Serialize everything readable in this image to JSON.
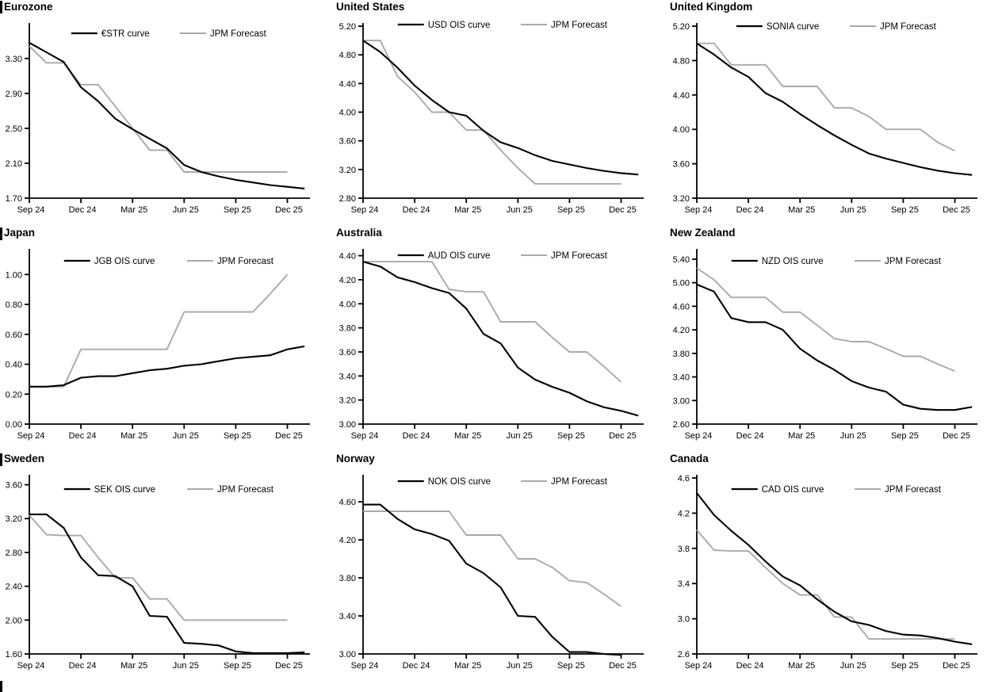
{
  "page": {
    "background_color": "#ffffff",
    "series_black_color": "#000000",
    "series_gray_color": "#a9a9a9"
  },
  "x_axis": {
    "tick_labels": [
      "Sep 24",
      "Dec 24",
      "Mar 25",
      "Jun 25",
      "Sep 25",
      "Dec 25"
    ],
    "tick_month_index": [
      0,
      3,
      6,
      9,
      12,
      15
    ]
  },
  "chart_data": [
    {
      "type": "line",
      "title": "Eurozone",
      "x_tick_labels": [
        "Sep 24",
        "Dec 24",
        "Mar 25",
        "Jun 25",
        "Sep 25",
        "Dec 25"
      ],
      "y_tick_labels": [
        "3.30",
        "2.90",
        "2.50",
        "2.10",
        "1.70"
      ],
      "ylim": [
        1.7,
        3.67
      ],
      "legend_position": "top-center",
      "grid": false,
      "series": [
        {
          "name": "€STR curve",
          "color_key": "black",
          "values": [
            3.48,
            3.37,
            3.26,
            2.97,
            2.81,
            2.61,
            2.49,
            2.38,
            2.27,
            2.08,
            2.0,
            1.95,
            1.91,
            1.88,
            1.85,
            1.83,
            1.81
          ]
        },
        {
          "name": "JPM Forecast",
          "color_key": "gray",
          "values": [
            3.44,
            3.25,
            3.25,
            3.0,
            3.0,
            2.75,
            2.5,
            2.25,
            2.25,
            2.0,
            2.0,
            2.0,
            2.0,
            2.0,
            2.0,
            2.0
          ]
        }
      ]
    },
    {
      "type": "line",
      "title": "United States",
      "x_tick_labels": [
        "Sep 24",
        "Dec 24",
        "Mar 25",
        "Jun 25",
        "Sep 25",
        "Dec 25"
      ],
      "y_tick_labels": [
        "5.20",
        "4.80",
        "4.40",
        "4.00",
        "3.60",
        "3.20",
        "2.80"
      ],
      "ylim": [
        2.8,
        5.2
      ],
      "legend_position": "top-center",
      "grid": false,
      "series": [
        {
          "name": "USD OIS curve",
          "color_key": "black",
          "values": [
            5.0,
            4.84,
            4.62,
            4.37,
            4.17,
            4.0,
            3.95,
            3.74,
            3.58,
            3.5,
            3.4,
            3.32,
            3.27,
            3.22,
            3.18,
            3.15,
            3.13
          ]
        },
        {
          "name": "JPM Forecast",
          "color_key": "gray",
          "values": [
            5.0,
            5.0,
            4.5,
            4.28,
            4.0,
            4.0,
            3.75,
            3.75,
            3.47,
            3.22,
            3.0,
            3.0,
            3.0,
            3.0,
            3.0,
            3.0
          ]
        }
      ]
    },
    {
      "type": "line",
      "title": "United Kingdom",
      "x_tick_labels": [
        "Sep 24",
        "Dec 24",
        "Mar 25",
        "Jun 25",
        "Sep 25",
        "Dec 25"
      ],
      "y_tick_labels": [
        "5.20",
        "4.80",
        "4.40",
        "4.00",
        "3.60",
        "3.20"
      ],
      "ylim": [
        3.2,
        5.2
      ],
      "legend_position": "top-center",
      "grid": false,
      "series": [
        {
          "name": "SONIA curve",
          "color_key": "black",
          "values": [
            5.0,
            4.87,
            4.72,
            4.61,
            4.42,
            4.32,
            4.18,
            4.05,
            3.93,
            3.82,
            3.72,
            3.66,
            3.61,
            3.56,
            3.52,
            3.49,
            3.47
          ]
        },
        {
          "name": "JPM Forecast",
          "color_key": "gray",
          "values": [
            5.0,
            5.0,
            4.75,
            4.75,
            4.75,
            4.5,
            4.5,
            4.5,
            4.25,
            4.25,
            4.15,
            4.0,
            4.0,
            4.0,
            3.85,
            3.75
          ]
        }
      ]
    },
    {
      "type": "line",
      "title": "Japan",
      "x_tick_labels": [
        "Sep 24",
        "Dec 24",
        "Mar 25",
        "Jun 25",
        "Sep 25",
        "Dec 25"
      ],
      "y_tick_labels": [
        "1.00",
        "0.80",
        "0.60",
        "0.40",
        "0.20",
        "0.00"
      ],
      "ylim": [
        0.0,
        1.15
      ],
      "legend_position": "top-center",
      "grid": false,
      "series": [
        {
          "name": "JGB OIS curve",
          "color_key": "black",
          "values": [
            0.25,
            0.25,
            0.26,
            0.31,
            0.32,
            0.32,
            0.34,
            0.36,
            0.37,
            0.39,
            0.4,
            0.42,
            0.44,
            0.45,
            0.46,
            0.5,
            0.52
          ]
        },
        {
          "name": "JPM Forecast",
          "color_key": "gray",
          "values": [
            0.25,
            0.25,
            0.25,
            0.5,
            0.5,
            0.5,
            0.5,
            0.5,
            0.5,
            0.75,
            0.75,
            0.75,
            0.75,
            0.75,
            0.87,
            1.0
          ]
        }
      ]
    },
    {
      "type": "line",
      "title": "Australia",
      "x_tick_labels": [
        "Sep 24",
        "Dec 24",
        "Mar 25",
        "Jun 25",
        "Sep 25",
        "Dec 25"
      ],
      "y_tick_labels": [
        "4.40",
        "4.20",
        "4.00",
        "3.80",
        "3.60",
        "3.40",
        "3.20",
        "3.00"
      ],
      "ylim": [
        3.0,
        4.43
      ],
      "legend_position": "top-center",
      "grid": false,
      "series": [
        {
          "name": "AUD OIS curve",
          "color_key": "black",
          "values": [
            4.35,
            4.31,
            4.22,
            4.18,
            4.13,
            4.09,
            3.96,
            3.75,
            3.67,
            3.47,
            3.37,
            3.31,
            3.26,
            3.19,
            3.14,
            3.11,
            3.07
          ]
        },
        {
          "name": "JPM Forecast",
          "color_key": "gray",
          "values": [
            4.35,
            4.35,
            4.35,
            4.35,
            4.35,
            4.12,
            4.1,
            4.1,
            3.85,
            3.85,
            3.85,
            3.72,
            3.6,
            3.6,
            3.48,
            3.35
          ]
        }
      ]
    },
    {
      "type": "line",
      "title": "New Zealand",
      "x_tick_labels": [
        "Sep 24",
        "Dec 24",
        "Mar 25",
        "Jun 25",
        "Sep 25",
        "Dec 25"
      ],
      "y_tick_labels": [
        "5.40",
        "5.00",
        "4.60",
        "4.20",
        "3.80",
        "3.40",
        "3.00",
        "2.60"
      ],
      "ylim": [
        2.6,
        5.52
      ],
      "legend_position": "top-center",
      "grid": false,
      "series": [
        {
          "name": "NZD OIS curve",
          "color_key": "black",
          "values": [
            4.97,
            4.85,
            4.4,
            4.33,
            4.33,
            4.2,
            3.88,
            3.68,
            3.52,
            3.33,
            3.22,
            3.15,
            2.93,
            2.86,
            2.84,
            2.84,
            2.89
          ]
        },
        {
          "name": "JPM Forecast",
          "color_key": "gray",
          "values": [
            5.25,
            5.05,
            4.75,
            4.75,
            4.75,
            4.5,
            4.5,
            4.28,
            4.05,
            4.0,
            4.0,
            3.88,
            3.75,
            3.75,
            3.62,
            3.5
          ]
        }
      ]
    },
    {
      "type": "line",
      "title": "Sweden",
      "x_tick_labels": [
        "Sep 24",
        "Dec 24",
        "Mar 25",
        "Jun 25",
        "Sep 25",
        "Dec 25"
      ],
      "y_tick_labels": [
        "3.60",
        "3.20",
        "2.80",
        "2.40",
        "2.00",
        "1.60"
      ],
      "ylim": [
        1.6,
        3.68
      ],
      "legend_position": "top-center",
      "grid": false,
      "series": [
        {
          "name": "SEK OIS curve",
          "color_key": "black",
          "values": [
            3.25,
            3.25,
            3.09,
            2.74,
            2.53,
            2.52,
            2.4,
            2.05,
            2.04,
            1.73,
            1.72,
            1.7,
            1.63,
            1.61,
            1.61,
            1.61,
            1.62
          ]
        },
        {
          "name": "JPM Forecast",
          "color_key": "gray",
          "values": [
            3.24,
            3.01,
            3.0,
            3.0,
            2.74,
            2.5,
            2.5,
            2.25,
            2.25,
            2.0,
            2.0,
            2.0,
            2.0,
            2.0,
            2.0,
            2.0
          ]
        }
      ]
    },
    {
      "type": "line",
      "title": "Norway",
      "x_tick_labels": [
        "Sep 24",
        "Dec 24",
        "Mar 25",
        "Jun 25",
        "Sep 25",
        "Dec 25"
      ],
      "y_tick_labels": [
        "4.60",
        "4.20",
        "3.80",
        "3.40",
        "3.00"
      ],
      "ylim": [
        3.0,
        4.85
      ],
      "legend_position": "top-center",
      "grid": false,
      "series": [
        {
          "name": "NOK OIS curve",
          "color_key": "black",
          "values": [
            4.57,
            4.57,
            4.42,
            4.31,
            4.26,
            4.19,
            3.95,
            3.85,
            3.7,
            3.4,
            3.39,
            3.18,
            3.02,
            3.02,
            3.0,
            2.99
          ]
        },
        {
          "name": "JPM Forecast",
          "color_key": "gray",
          "values": [
            4.5,
            4.5,
            4.5,
            4.5,
            4.5,
            4.5,
            4.25,
            4.25,
            4.25,
            4.0,
            4.0,
            3.91,
            3.77,
            3.75,
            3.63,
            3.5
          ]
        }
      ]
    },
    {
      "type": "line",
      "title": "Canada",
      "x_tick_labels": [
        "Sep 24",
        "Dec 24",
        "Mar 25",
        "Jun 25",
        "Sep 25",
        "Dec 25"
      ],
      "y_tick_labels": [
        "4.6",
        "4.2",
        "3.8",
        "3.4",
        "3.0",
        "2.6"
      ],
      "ylim": [
        2.6,
        4.6
      ],
      "legend_position": "top-center",
      "grid": false,
      "series": [
        {
          "name": "CAD OIS curve",
          "color_key": "black",
          "values": [
            4.43,
            4.18,
            4.0,
            3.84,
            3.65,
            3.48,
            3.38,
            3.22,
            3.08,
            2.97,
            2.93,
            2.86,
            2.82,
            2.81,
            2.78,
            2.74,
            2.71
          ]
        },
        {
          "name": "JPM Forecast",
          "color_key": "gray",
          "values": [
            4.01,
            3.78,
            3.77,
            3.77,
            3.58,
            3.4,
            3.27,
            3.27,
            3.02,
            3.02,
            2.77,
            2.77,
            2.77,
            2.77,
            2.77,
            2.77
          ]
        }
      ]
    }
  ]
}
